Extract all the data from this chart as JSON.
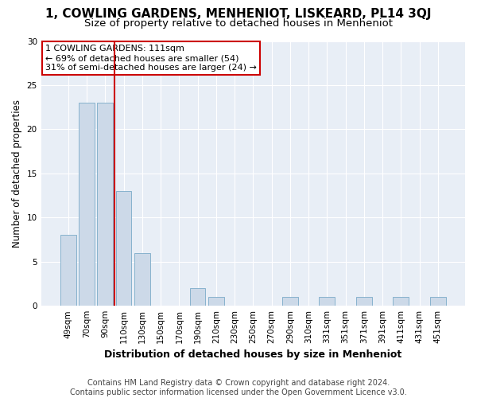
{
  "title": "1, COWLING GARDENS, MENHENIOT, LISKEARD, PL14 3QJ",
  "subtitle": "Size of property relative to detached houses in Menheniot",
  "xlabel": "Distribution of detached houses by size in Menheniot",
  "ylabel": "Number of detached properties",
  "categories": [
    "49sqm",
    "70sqm",
    "90sqm",
    "110sqm",
    "130sqm",
    "150sqm",
    "170sqm",
    "190sqm",
    "210sqm",
    "230sqm",
    "250sqm",
    "270sqm",
    "290sqm",
    "310sqm",
    "331sqm",
    "351sqm",
    "371sqm",
    "391sqm",
    "411sqm",
    "431sqm",
    "451sqm"
  ],
  "values": [
    8,
    23,
    23,
    13,
    6,
    0,
    0,
    2,
    1,
    0,
    0,
    0,
    1,
    0,
    1,
    0,
    1,
    0,
    1,
    0,
    1
  ],
  "bar_color": "#ccd9e8",
  "bar_edge_color": "#7aaac8",
  "subject_bar_index": 3,
  "subject_line_color": "#cc0000",
  "annotation_line1": "1 COWLING GARDENS: 111sqm",
  "annotation_line2": "← 69% of detached houses are smaller (54)",
  "annotation_line3": "31% of semi-detached houses are larger (24) →",
  "annotation_box_facecolor": "#ffffff",
  "annotation_box_edgecolor": "#cc0000",
  "ylim": [
    0,
    30
  ],
  "yticks": [
    0,
    5,
    10,
    15,
    20,
    25,
    30
  ],
  "footer_line1": "Contains HM Land Registry data © Crown copyright and database right 2024.",
  "footer_line2": "Contains public sector information licensed under the Open Government Licence v3.0.",
  "fig_facecolor": "#ffffff",
  "ax_facecolor": "#e8eef6",
  "title_fontsize": 11,
  "subtitle_fontsize": 9.5,
  "ylabel_fontsize": 8.5,
  "xlabel_fontsize": 9,
  "tick_fontsize": 7.5,
  "annotation_fontsize": 8,
  "footer_fontsize": 7
}
